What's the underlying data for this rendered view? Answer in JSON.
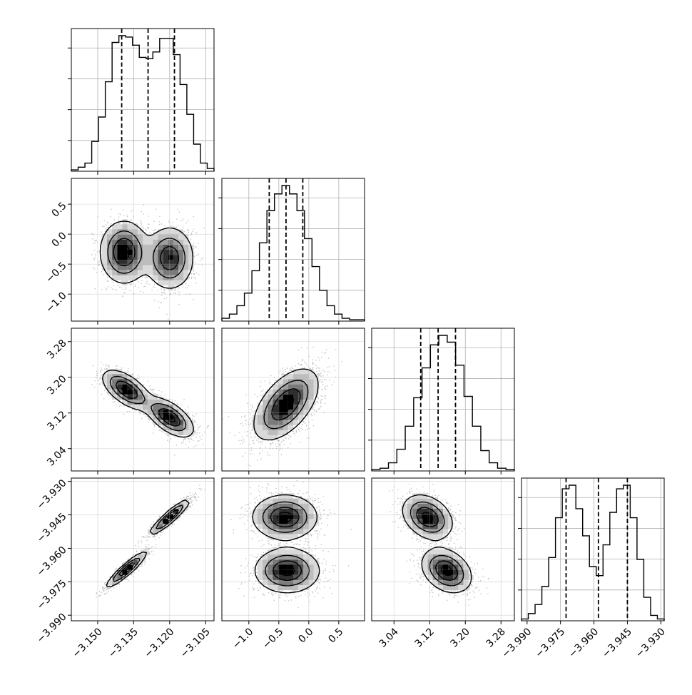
{
  "chart_data": {
    "type": "corner",
    "grid": true,
    "parameters": [
      {
        "ticks": [
          -3.15,
          -3.135,
          -3.12,
          -3.105
        ],
        "tick_labels": [
          "−3.150",
          "−3.135",
          "−3.120",
          "−3.105"
        ],
        "range": [
          -3.161,
          -3.1015
        ],
        "quantiles": [
          -3.14,
          -3.129,
          -3.118
        ]
      },
      {
        "ticks": [
          -1.0,
          -0.5,
          0.0,
          0.5
        ],
        "tick_labels": [
          "−1.0",
          "−0.5",
          "0.0",
          "0.5"
        ],
        "range": [
          -1.45,
          0.93
        ],
        "quantiles": [
          -0.66,
          -0.38,
          -0.1
        ]
      },
      {
        "ticks": [
          3.04,
          3.12,
          3.2,
          3.28
        ],
        "tick_labels": [
          "3.04",
          "3.12",
          "3.20",
          "3.28"
        ],
        "range": [
          2.99,
          3.31
        ],
        "quantiles": [
          3.1,
          3.139,
          3.178
        ]
      },
      {
        "ticks": [
          -3.99,
          -3.975,
          -3.96,
          -3.945,
          -3.93
        ],
        "tick_labels": [
          "−3.990",
          "−3.975",
          "−3.960",
          "−3.945",
          "−3.930"
        ],
        "range": [
          -3.9925,
          -3.9285
        ],
        "quantiles": [
          -3.9725,
          -3.958,
          -3.945
        ]
      }
    ],
    "histograms": [
      [
        0.01,
        0.03,
        0.06,
        0.22,
        0.4,
        0.66,
        0.95,
        1.0,
        0.99,
        0.93,
        0.84,
        0.83,
        0.88,
        0.98,
        0.98,
        0.86,
        0.64,
        0.42,
        0.2,
        0.06,
        0.02
      ],
      [
        0.02,
        0.05,
        0.11,
        0.2,
        0.36,
        0.56,
        0.79,
        0.91,
        0.97,
        0.91,
        0.79,
        0.59,
        0.39,
        0.22,
        0.11,
        0.05,
        0.02,
        0.01,
        0.01
      ],
      [
        0.01,
        0.02,
        0.06,
        0.16,
        0.33,
        0.54,
        0.76,
        0.93,
        1.0,
        0.95,
        0.78,
        0.55,
        0.33,
        0.15,
        0.06,
        0.02,
        0.01
      ],
      [
        0.01,
        0.04,
        0.09,
        0.19,
        0.35,
        0.57,
        0.73,
        0.75,
        0.62,
        0.47,
        0.3,
        0.25,
        0.42,
        0.6,
        0.73,
        0.75,
        0.57,
        0.34,
        0.13,
        0.03,
        0.01
      ]
    ],
    "pairs": [
      {
        "x": 0,
        "y": 1,
        "blobs": [
          {
            "cx": -3.139,
            "cy": -0.3,
            "sx": 0.005,
            "sy": 0.26,
            "rho": 0.0,
            "w": 1.0
          },
          {
            "cx": -3.12,
            "cy": -0.4,
            "sx": 0.005,
            "sy": 0.26,
            "rho": 0.0,
            "w": 0.9
          }
        ]
      },
      {
        "x": 0,
        "y": 2,
        "blobs": [
          {
            "cx": -3.138,
            "cy": 3.172,
            "sx": 0.005,
            "sy": 0.022,
            "rho": -0.6,
            "w": 1.0
          },
          {
            "cx": -3.12,
            "cy": 3.11,
            "sx": 0.005,
            "sy": 0.022,
            "rho": -0.6,
            "w": 1.0
          }
        ]
      },
      {
        "x": 1,
        "y": 2,
        "blobs": [
          {
            "cx": -0.38,
            "cy": 3.139,
            "sx": 0.27,
            "sy": 0.04,
            "rho": 0.55,
            "w": 1.0
          }
        ]
      },
      {
        "x": 0,
        "y": 3,
        "blobs": [
          {
            "cx": -3.138,
            "cy": -3.9695,
            "sx": 0.0042,
            "sy": 0.004,
            "rho": 0.92,
            "w": 1.0
          },
          {
            "cx": -3.12,
            "cy": -3.946,
            "sx": 0.0042,
            "sy": 0.004,
            "rho": 0.92,
            "w": 1.0
          }
        ]
      },
      {
        "x": 1,
        "y": 3,
        "blobs": [
          {
            "cx": -0.4,
            "cy": -3.946,
            "sx": 0.27,
            "sy": 0.005,
            "rho": 0.0,
            "w": 1.0
          },
          {
            "cx": -0.36,
            "cy": -3.97,
            "sx": 0.27,
            "sy": 0.005,
            "rho": 0.0,
            "w": 1.0
          }
        ]
      },
      {
        "x": 2,
        "y": 3,
        "blobs": [
          {
            "cx": 3.115,
            "cy": -3.946,
            "sx": 0.028,
            "sy": 0.005,
            "rho": -0.3,
            "w": 1.0
          },
          {
            "cx": 3.158,
            "cy": -3.97,
            "sx": 0.028,
            "sy": 0.005,
            "rho": -0.3,
            "w": 1.0
          }
        ]
      }
    ]
  }
}
